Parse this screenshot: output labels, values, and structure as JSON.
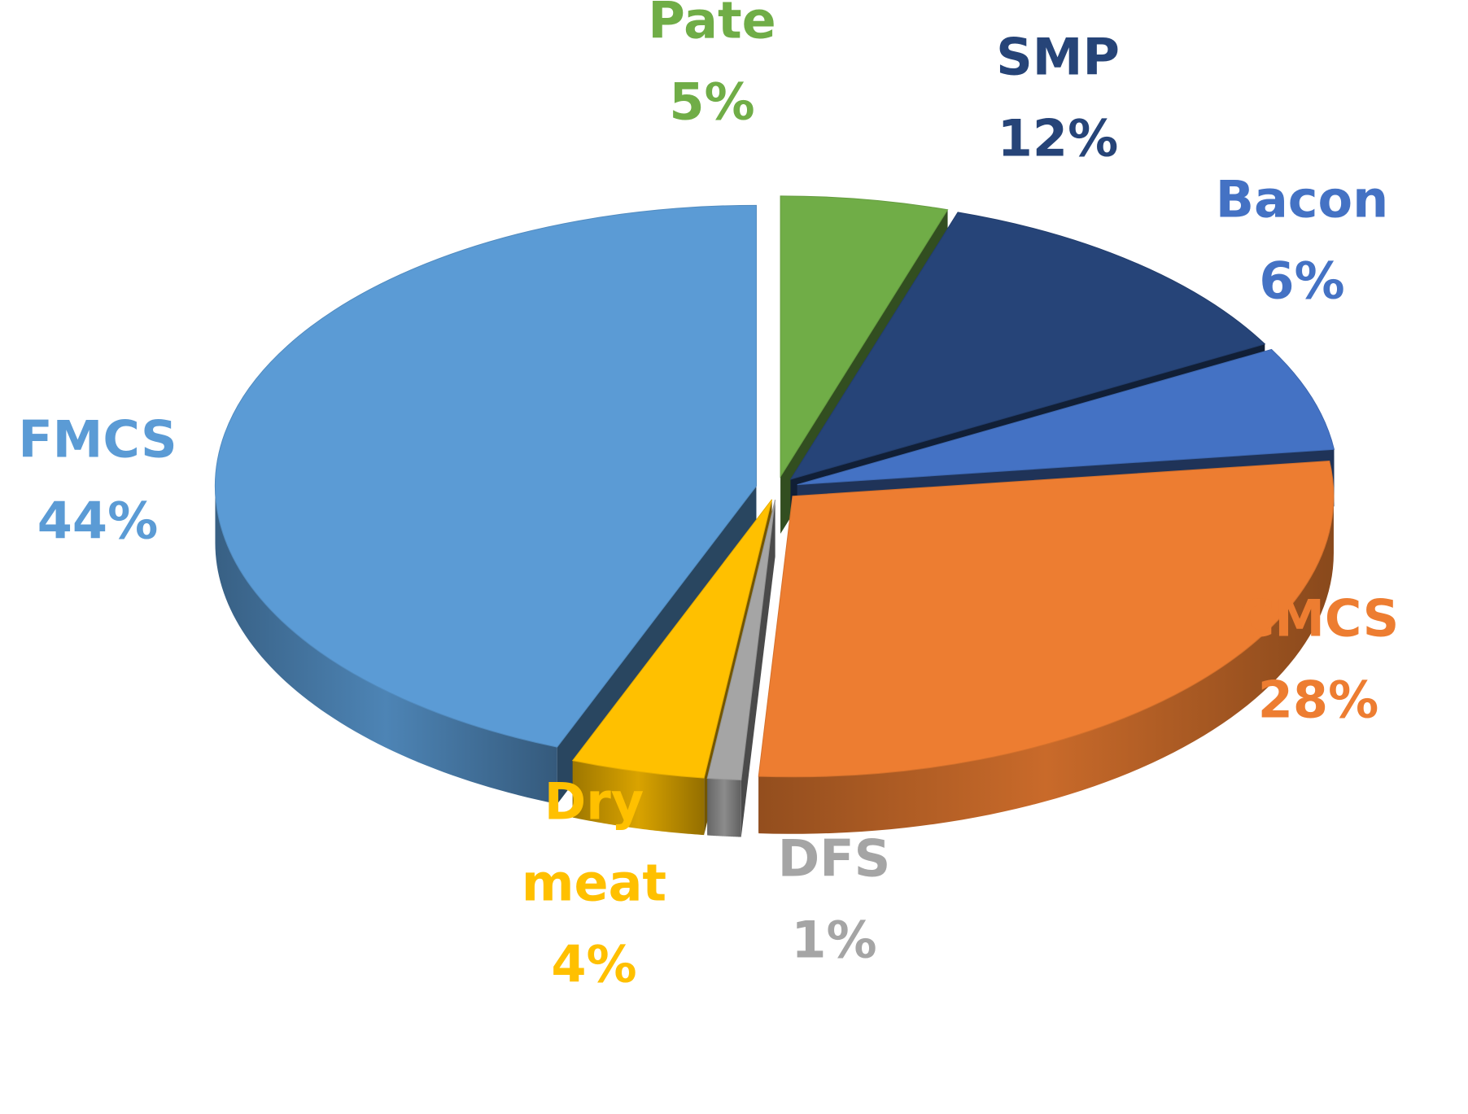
{
  "chart_data": {
    "type": "pie",
    "style": "3d-exploded",
    "title": "",
    "legend": "none",
    "slices": [
      {
        "label": "Pate",
        "label_lines": [
          "Pate"
        ],
        "percent_label": "5%",
        "value": 5,
        "color": "#70AD47"
      },
      {
        "label": "SMP",
        "label_lines": [
          "SMP"
        ],
        "percent_label": "12%",
        "value": 12,
        "color": "#264478"
      },
      {
        "label": "Bacon",
        "label_lines": [
          "Bacon"
        ],
        "percent_label": "6%",
        "value": 6,
        "color": "#4472C4"
      },
      {
        "label": "CMCS",
        "label_lines": [
          "CMCS"
        ],
        "percent_label": "28%",
        "value": 28,
        "color": "#ED7D31"
      },
      {
        "label": "DFS",
        "label_lines": [
          "DFS"
        ],
        "percent_label": "1%",
        "value": 1,
        "color": "#A5A5A5"
      },
      {
        "label": "Dry meat",
        "label_lines": [
          "Dry",
          "meat"
        ],
        "percent_label": "4%",
        "value": 4,
        "color": "#FFC000"
      },
      {
        "label": "FMCS",
        "label_lines": [
          "FMCS"
        ],
        "percent_label": "44%",
        "value": 44,
        "color": "#5B9BD5"
      }
    ]
  }
}
